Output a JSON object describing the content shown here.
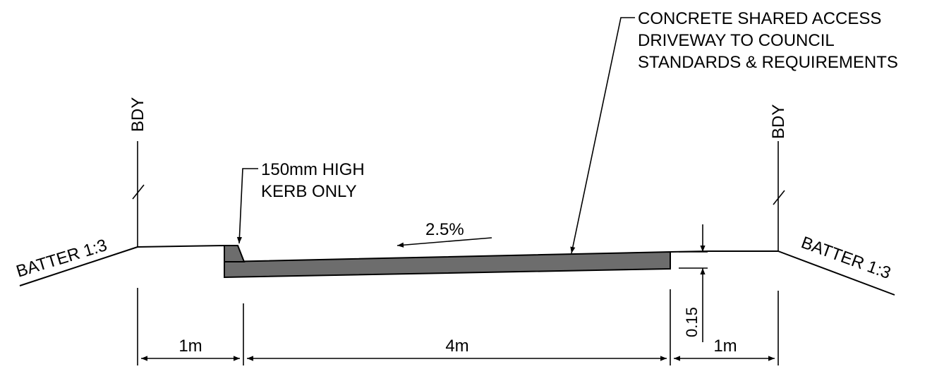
{
  "drawing": {
    "labels": {
      "batter_left": "BATTER 1:3",
      "batter_right": "BATTER 1:3",
      "bdy_left": "BDY",
      "bdy_right": "BDY",
      "kerb_line1": "150mm HIGH",
      "kerb_line2": "KERB ONLY",
      "driveway_line1": "CONCRETE SHARED ACCESS",
      "driveway_line2": "DRIVEWAY TO COUNCIL",
      "driveway_line3": "STANDARDS & REQUIREMENTS",
      "grade": "2.5%",
      "thickness": "0.15"
    },
    "dimensions": {
      "left_verge": "1m",
      "driveway_width": "4m",
      "right_verge": "1m"
    },
    "colors": {
      "line": "#000000",
      "concrete_fill": "#6d6d6d"
    }
  }
}
